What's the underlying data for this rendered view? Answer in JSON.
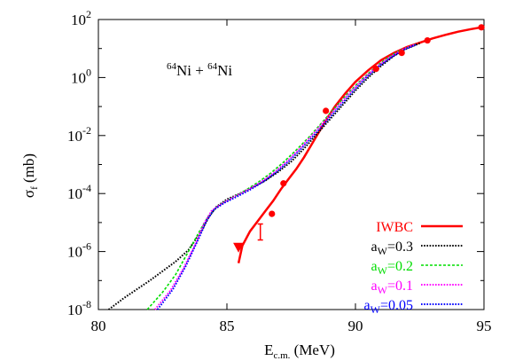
{
  "chart_data": {
    "type": "line",
    "annotation": {
      "mass_a": "64",
      "elem_a": "Ni",
      "plus": " + ",
      "mass_b": "64",
      "elem_b": "Ni"
    },
    "xlabel": {
      "main": "E",
      "sub": "c.m.",
      "unit": " (MeV)"
    },
    "ylabel": {
      "main": "σ",
      "sub": "f",
      "unit": " (mb)"
    },
    "xlim": [
      80,
      95
    ],
    "ylim_log10": [
      -8,
      2
    ],
    "y_scale": "log",
    "x_ticks": [
      {
        "value": 80,
        "label": "80"
      },
      {
        "value": 85,
        "label": "85"
      },
      {
        "value": 90,
        "label": "90"
      },
      {
        "value": 95,
        "label": "95"
      }
    ],
    "y_ticks": [
      {
        "exp": -8,
        "base": "10",
        "sup": "-8"
      },
      {
        "exp": -6,
        "base": "10",
        "sup": "-6"
      },
      {
        "exp": -4,
        "base": "10",
        "sup": "-4"
      },
      {
        "exp": -2,
        "base": "10",
        "sup": "-2"
      },
      {
        "exp": 0,
        "base": "10",
        "sup": "0"
      },
      {
        "exp": 2,
        "base": "10",
        "sup": "2"
      }
    ],
    "legend_position": "bottom-right",
    "series": [
      {
        "name": "IWBC",
        "legend_main": "IWBC",
        "legend_sub": "",
        "legend_rest": "",
        "color": "#ff0000",
        "style": "solid",
        "width": 2.5,
        "points": [
          [
            85.45,
            -6.4
          ],
          [
            85.6,
            -5.8
          ],
          [
            85.9,
            -5.3
          ],
          [
            86.2,
            -4.95
          ],
          [
            86.5,
            -4.6
          ],
          [
            86.8,
            -4.25
          ],
          [
            87.1,
            -3.85
          ],
          [
            87.4,
            -3.5
          ],
          [
            87.7,
            -3.15
          ],
          [
            88.0,
            -2.75
          ],
          [
            88.3,
            -2.3
          ],
          [
            88.6,
            -1.85
          ],
          [
            88.9,
            -1.4
          ],
          [
            89.2,
            -1.0
          ],
          [
            89.6,
            -0.55
          ],
          [
            90.0,
            -0.15
          ],
          [
            90.5,
            0.25
          ],
          [
            91.0,
            0.6
          ],
          [
            91.5,
            0.85
          ],
          [
            92.0,
            1.05
          ],
          [
            92.5,
            1.2
          ],
          [
            93.0,
            1.35
          ],
          [
            93.5,
            1.47
          ],
          [
            94.0,
            1.58
          ],
          [
            94.5,
            1.67
          ],
          [
            94.9,
            1.73
          ]
        ]
      },
      {
        "name": "aW=0.3",
        "legend_main": "a",
        "legend_sub": "W",
        "legend_rest": "=0.3",
        "color": "#000000",
        "style": "dotted",
        "width": 2,
        "points": [
          [
            80.4,
            -8.0
          ],
          [
            81.0,
            -7.6
          ],
          [
            82.0,
            -7.0
          ],
          [
            83.0,
            -6.35
          ],
          [
            83.5,
            -5.95
          ],
          [
            84.0,
            -5.3
          ],
          [
            84.3,
            -4.8
          ],
          [
            84.6,
            -4.45
          ],
          [
            85.0,
            -4.2
          ],
          [
            85.5,
            -4.0
          ],
          [
            86.0,
            -3.78
          ],
          [
            86.5,
            -3.55
          ],
          [
            87.0,
            -3.25
          ],
          [
            87.5,
            -2.9
          ],
          [
            88.0,
            -2.45
          ],
          [
            88.5,
            -1.95
          ],
          [
            89.0,
            -1.45
          ],
          [
            89.5,
            -0.95
          ],
          [
            90.0,
            -0.45
          ],
          [
            90.5,
            0.0
          ],
          [
            91.0,
            0.4
          ],
          [
            91.5,
            0.75
          ],
          [
            92.0,
            1.0
          ],
          [
            92.5,
            1.18
          ]
        ]
      },
      {
        "name": "aW=0.2",
        "legend_main": "a",
        "legend_sub": "W",
        "legend_rest": "=0.2",
        "color": "#00dd00",
        "style": "dashed",
        "width": 1.6,
        "points": [
          [
            81.9,
            -8.0
          ],
          [
            82.5,
            -7.4
          ],
          [
            83.0,
            -6.8
          ],
          [
            83.5,
            -6.0
          ],
          [
            84.0,
            -5.2
          ],
          [
            84.3,
            -4.75
          ],
          [
            84.7,
            -4.4
          ],
          [
            85.2,
            -4.15
          ],
          [
            85.7,
            -3.9
          ],
          [
            86.2,
            -3.62
          ],
          [
            86.7,
            -3.3
          ],
          [
            87.2,
            -2.92
          ],
          [
            87.7,
            -2.5
          ],
          [
            88.2,
            -2.05
          ],
          [
            88.7,
            -1.55
          ],
          [
            89.2,
            -1.05
          ],
          [
            89.7,
            -0.55
          ],
          [
            90.2,
            -0.1
          ],
          [
            90.7,
            0.3
          ],
          [
            91.2,
            0.65
          ],
          [
            91.7,
            0.92
          ],
          [
            92.3,
            1.13
          ]
        ]
      },
      {
        "name": "aW=0.1",
        "legend_main": "a",
        "legend_sub": "W",
        "legend_rest": "=0.1",
        "color": "#ff00ff",
        "style": "dotted",
        "width": 2,
        "points": [
          [
            82.2,
            -8.0
          ],
          [
            82.8,
            -7.35
          ],
          [
            83.3,
            -6.6
          ],
          [
            83.8,
            -5.7
          ],
          [
            84.1,
            -5.05
          ],
          [
            84.4,
            -4.6
          ],
          [
            84.8,
            -4.35
          ],
          [
            85.3,
            -4.1
          ],
          [
            85.8,
            -3.88
          ],
          [
            86.3,
            -3.62
          ],
          [
            86.8,
            -3.3
          ],
          [
            87.3,
            -2.92
          ],
          [
            87.8,
            -2.48
          ],
          [
            88.3,
            -2.0
          ],
          [
            88.8,
            -1.5
          ],
          [
            89.3,
            -1.0
          ],
          [
            89.8,
            -0.5
          ],
          [
            90.3,
            -0.05
          ],
          [
            90.8,
            0.35
          ],
          [
            91.3,
            0.68
          ],
          [
            91.8,
            0.95
          ],
          [
            92.3,
            1.13
          ]
        ]
      },
      {
        "name": "aW=0.05",
        "legend_main": "a",
        "legend_sub": "W",
        "legend_rest": "=0.05",
        "color": "#0000ff",
        "style": "dotted",
        "width": 2,
        "points": [
          [
            82.3,
            -8.0
          ],
          [
            82.9,
            -7.3
          ],
          [
            83.4,
            -6.5
          ],
          [
            83.9,
            -5.55
          ],
          [
            84.2,
            -4.95
          ],
          [
            84.5,
            -4.55
          ],
          [
            84.9,
            -4.32
          ],
          [
            85.4,
            -4.1
          ],
          [
            85.9,
            -3.87
          ],
          [
            86.4,
            -3.6
          ],
          [
            86.9,
            -3.28
          ],
          [
            87.4,
            -2.9
          ],
          [
            87.9,
            -2.45
          ],
          [
            88.4,
            -1.98
          ],
          [
            88.9,
            -1.48
          ],
          [
            89.4,
            -0.98
          ],
          [
            89.9,
            -0.48
          ],
          [
            90.4,
            -0.02
          ],
          [
            90.9,
            0.38
          ],
          [
            91.4,
            0.7
          ],
          [
            91.9,
            0.97
          ],
          [
            92.4,
            1.15
          ]
        ]
      }
    ],
    "experimental_points": [
      {
        "x": 86.75,
        "y": -4.7
      },
      {
        "x": 87.2,
        "y": -3.65
      },
      {
        "x": 88.85,
        "y": -1.15
      },
      {
        "x": 90.8,
        "y": 0.3
      },
      {
        "x": 91.8,
        "y": 0.85
      },
      {
        "x": 92.8,
        "y": 1.28
      },
      {
        "x": 94.9,
        "y": 1.73
      }
    ],
    "error_bar_point": {
      "x": 86.3,
      "y": -5.3,
      "y_low": -5.6,
      "y_high": -5.05
    },
    "upper_limit_point": {
      "x": 85.45,
      "y": -5.85
    }
  }
}
